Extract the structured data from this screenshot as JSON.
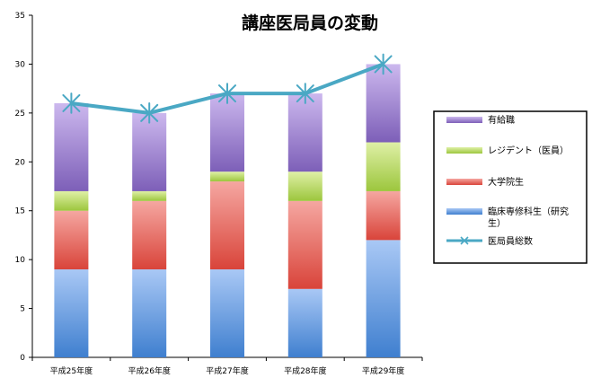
{
  "chart_data": {
    "type": "bar",
    "stacked": true,
    "title": "講座医局員の変動",
    "xlabel": "",
    "ylabel": "",
    "ylim": [
      0,
      35
    ],
    "yticks": [
      0,
      5,
      10,
      15,
      20,
      25,
      30,
      35
    ],
    "categories": [
      "平成25年度",
      "平成26年度",
      "平成27年度",
      "平成28年度",
      "平成29年度"
    ],
    "series": [
      {
        "name": "臨床専修科生（研究生）",
        "type": "bar",
        "color": "#5b8fd9",
        "values": [
          9,
          9,
          9,
          7,
          12
        ]
      },
      {
        "name": "大学院生",
        "type": "bar",
        "color": "#e0625a",
        "values": [
          6,
          7,
          9,
          9,
          5
        ]
      },
      {
        "name": "レジデント（医員）",
        "type": "bar",
        "color": "#b5d65b",
        "values": [
          2,
          1,
          1,
          3,
          5
        ]
      },
      {
        "name": "有給職",
        "type": "bar",
        "color": "#9a7fc9",
        "values": [
          9,
          8,
          8,
          8,
          8
        ]
      },
      {
        "name": "医局員総数",
        "type": "line",
        "marker": "asterisk",
        "color": "#4aa8c4",
        "values": [
          26,
          25,
          27,
          27,
          30
        ]
      }
    ],
    "legend": {
      "position": "right",
      "entries": [
        "有給職",
        "レジデント（医員）",
        "大学院生",
        "臨床専修科生（研究生）",
        "医局員総数"
      ]
    },
    "grid": false
  }
}
